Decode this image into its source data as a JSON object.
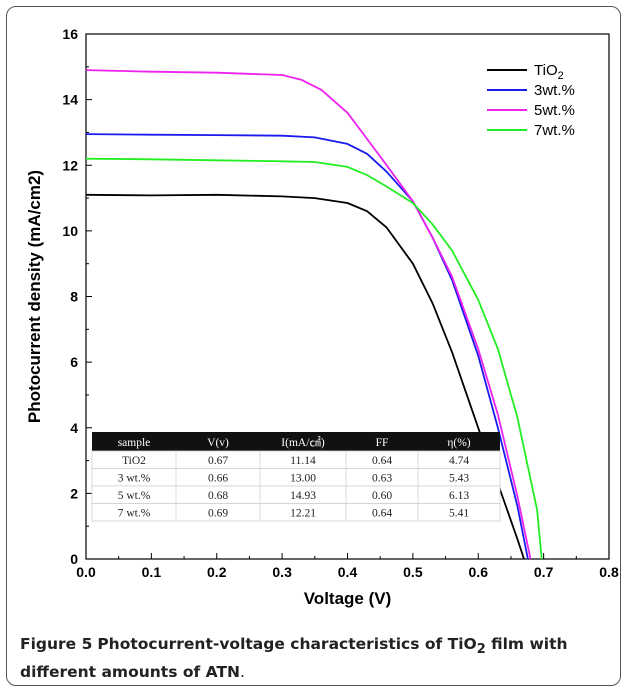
{
  "chart_data": {
    "type": "line",
    "xlabel": "Voltage (V)",
    "ylabel": "Photocurrent density (mA/cm2)",
    "xlim": [
      0.0,
      0.8
    ],
    "ylim": [
      0,
      16
    ],
    "x_ticks": [
      "0.0",
      "0.1",
      "0.2",
      "0.3",
      "0.4",
      "0.5",
      "0.6",
      "0.7",
      "0.8"
    ],
    "y_ticks": [
      "0",
      "2",
      "4",
      "6",
      "8",
      "10",
      "12",
      "14",
      "16"
    ],
    "grid": false,
    "legend_position": "top-right",
    "series": [
      {
        "name": "TiO",
        "name_sub": "2",
        "color": "#000000",
        "x": [
          0,
          0.1,
          0.2,
          0.3,
          0.35,
          0.4,
          0.43,
          0.46,
          0.5,
          0.53,
          0.56,
          0.6,
          0.63,
          0.66,
          0.67
        ],
        "y": [
          11.1,
          11.08,
          11.1,
          11.05,
          11.0,
          10.85,
          10.6,
          10.1,
          9.0,
          7.8,
          6.3,
          4.0,
          2.3,
          0.6,
          0.0
        ]
      },
      {
        "name": "3wt.%",
        "color": "#1a1aee",
        "x": [
          0,
          0.1,
          0.2,
          0.3,
          0.35,
          0.4,
          0.43,
          0.46,
          0.5,
          0.53,
          0.56,
          0.6,
          0.63,
          0.66,
          0.676
        ],
        "y": [
          12.95,
          12.93,
          12.92,
          12.9,
          12.85,
          12.65,
          12.35,
          11.8,
          10.9,
          9.8,
          8.5,
          6.2,
          4.0,
          1.6,
          0.0
        ]
      },
      {
        "name": "5wt.%",
        "color": "#ee22ee",
        "x": [
          0,
          0.1,
          0.2,
          0.3,
          0.33,
          0.36,
          0.4,
          0.43,
          0.46,
          0.5,
          0.53,
          0.56,
          0.6,
          0.63,
          0.66,
          0.68
        ],
        "y": [
          14.9,
          14.85,
          14.82,
          14.75,
          14.6,
          14.3,
          13.6,
          12.8,
          12.0,
          10.9,
          9.8,
          8.6,
          6.4,
          4.4,
          1.9,
          0.0
        ]
      },
      {
        "name": "7wt.%",
        "color": "#22ee22",
        "x": [
          0,
          0.1,
          0.2,
          0.3,
          0.35,
          0.4,
          0.43,
          0.46,
          0.5,
          0.53,
          0.56,
          0.6,
          0.63,
          0.66,
          0.69,
          0.697
        ],
        "y": [
          12.2,
          12.18,
          12.15,
          12.12,
          12.1,
          11.95,
          11.7,
          11.35,
          10.85,
          10.2,
          9.4,
          7.9,
          6.4,
          4.3,
          1.5,
          0.0
        ]
      }
    ],
    "table": {
      "columns": [
        "sample",
        "V(v)",
        "I(mA/㎠)",
        "FF",
        "η(%)"
      ],
      "rows": [
        [
          "TiO2",
          "0.67",
          "11.14",
          "0.64",
          "4.74"
        ],
        [
          "3 wt.%",
          "0.66",
          "13.00",
          "0.63",
          "5.43"
        ],
        [
          "5 wt.%",
          "0.68",
          "14.93",
          "0.60",
          "6.13"
        ],
        [
          "7 wt.%",
          "0.69",
          "12.21",
          "0.64",
          "5.41"
        ]
      ]
    }
  },
  "caption": {
    "figure_label": "Figure 5",
    "text_before_sub": "Photocurrent-voltage characteristics of TiO",
    "sub": "2",
    "text_after_sub": " film with different amounts of ATN",
    "end": "."
  }
}
